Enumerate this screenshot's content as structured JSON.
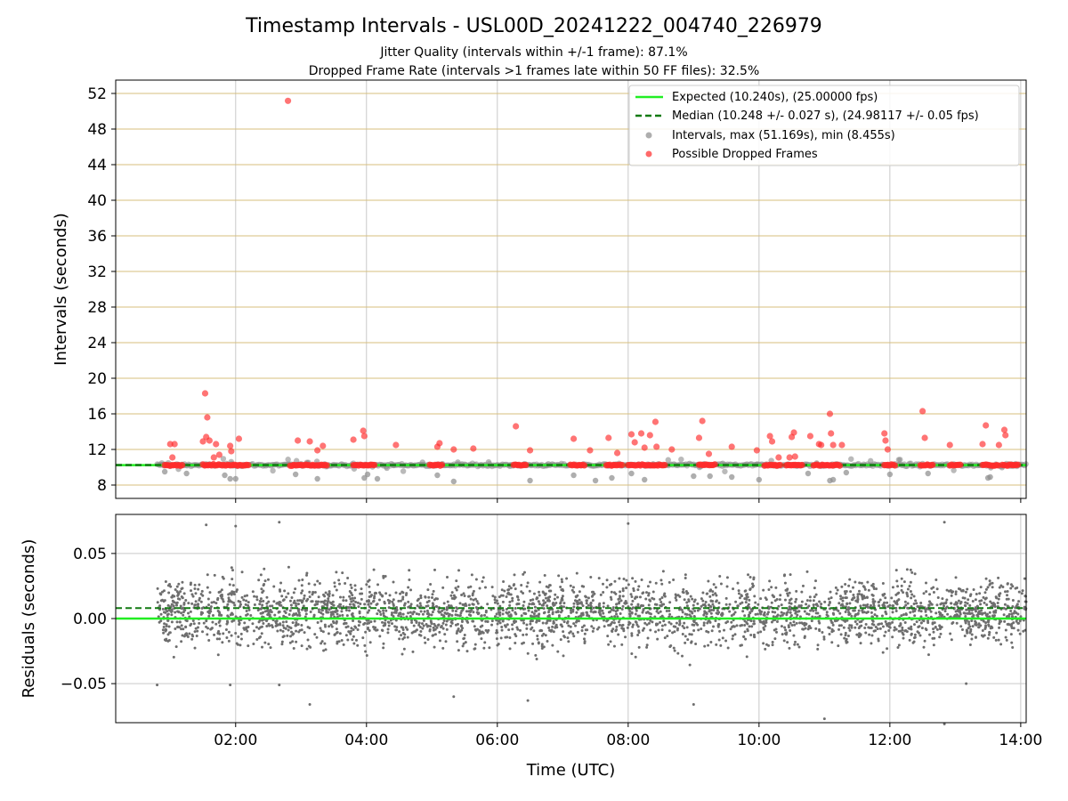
{
  "title": "Timestamp Intervals - USL00D_20241222_004740_226979",
  "subtitle1": "Jitter Quality (intervals within +/-1 frame): 87.1%",
  "subtitle2": "Dropped Frame Rate (intervals >1 frames late within 50 FF files): 32.5%",
  "colors": {
    "expected": "#22ee22",
    "median": "#127a12",
    "intervals": "#8c8c8c",
    "dropped": "#ff2a2a",
    "hgrid_top": "#d7bf7d",
    "vgrid": "#c9c9c9",
    "residual_points": "#6e6e6e"
  },
  "chart_data": [
    {
      "type": "scatter",
      "panel": "intervals",
      "xlabel": "",
      "ylabel": "Intervals (seconds)",
      "xlim": [
        "00:10",
        "14:05"
      ],
      "ylim": [
        6.5,
        53.5
      ],
      "x_ticks": [
        "02:00",
        "04:00",
        "06:00",
        "08:00",
        "10:00",
        "12:00",
        "14:00"
      ],
      "y_ticks": [
        8,
        12,
        16,
        20,
        24,
        28,
        32,
        36,
        40,
        44,
        48,
        52
      ],
      "grid": "horizontal lines (tan) and vertical lines (gray)",
      "legend_position": "top-right",
      "legend": [
        "Expected (10.240s), (25.00000 fps)",
        "Median (10.248 +/- 0.027 s), (24.98117 +/- 0.05 fps)",
        "Intervals, max (51.169s), min (8.455s)",
        "Possible Dropped Frames"
      ],
      "expected_interval": 10.24,
      "median_interval": 10.248,
      "max_interval": 51.169,
      "min_interval": 8.455,
      "dropped_frame_outliers": [
        {
          "x": "01:00",
          "y": 12.6
        },
        {
          "x": "01:04",
          "y": 12.6
        },
        {
          "x": "01:02",
          "y": 11.1
        },
        {
          "x": "01:30",
          "y": 12.9
        },
        {
          "x": "01:32",
          "y": 18.3
        },
        {
          "x": "01:34",
          "y": 15.6
        },
        {
          "x": "01:33",
          "y": 13.4
        },
        {
          "x": "01:36",
          "y": 13.0
        },
        {
          "x": "01:40",
          "y": 11.1
        },
        {
          "x": "01:42",
          "y": 12.6
        },
        {
          "x": "01:45",
          "y": 11.4
        },
        {
          "x": "01:55",
          "y": 12.4
        },
        {
          "x": "01:56",
          "y": 11.8
        },
        {
          "x": "02:03",
          "y": 13.2
        },
        {
          "x": "02:48",
          "y": 51.169
        },
        {
          "x": "02:57",
          "y": 13.0
        },
        {
          "x": "03:08",
          "y": 12.9
        },
        {
          "x": "03:15",
          "y": 11.9
        },
        {
          "x": "03:20",
          "y": 12.4
        },
        {
          "x": "03:48",
          "y": 13.1
        },
        {
          "x": "03:57",
          "y": 14.1
        },
        {
          "x": "03:58",
          "y": 13.5
        },
        {
          "x": "04:27",
          "y": 12.5
        },
        {
          "x": "05:05",
          "y": 12.3
        },
        {
          "x": "05:07",
          "y": 12.7
        },
        {
          "x": "05:20",
          "y": 12.0
        },
        {
          "x": "05:38",
          "y": 12.1
        },
        {
          "x": "06:17",
          "y": 14.6
        },
        {
          "x": "06:30",
          "y": 11.9
        },
        {
          "x": "07:10",
          "y": 13.2
        },
        {
          "x": "07:25",
          "y": 11.9
        },
        {
          "x": "07:42",
          "y": 13.3
        },
        {
          "x": "07:50",
          "y": 11.6
        },
        {
          "x": "08:03",
          "y": 13.7
        },
        {
          "x": "08:06",
          "y": 12.8
        },
        {
          "x": "08:12",
          "y": 13.8
        },
        {
          "x": "08:15",
          "y": 12.2
        },
        {
          "x": "08:20",
          "y": 13.6
        },
        {
          "x": "08:25",
          "y": 15.1
        },
        {
          "x": "08:26",
          "y": 12.3
        },
        {
          "x": "08:40",
          "y": 12.0
        },
        {
          "x": "09:05",
          "y": 13.3
        },
        {
          "x": "09:08",
          "y": 15.2
        },
        {
          "x": "09:14",
          "y": 11.5
        },
        {
          "x": "09:35",
          "y": 12.3
        },
        {
          "x": "09:58",
          "y": 11.9
        },
        {
          "x": "10:10",
          "y": 13.5
        },
        {
          "x": "10:12",
          "y": 12.9
        },
        {
          "x": "10:18",
          "y": 11.1
        },
        {
          "x": "10:28",
          "y": 11.1
        },
        {
          "x": "10:30",
          "y": 13.4
        },
        {
          "x": "10:32",
          "y": 13.9
        },
        {
          "x": "10:33",
          "y": 11.2
        },
        {
          "x": "10:47",
          "y": 13.5
        },
        {
          "x": "10:55",
          "y": 12.6
        },
        {
          "x": "10:57",
          "y": 12.5
        },
        {
          "x": "11:05",
          "y": 16.0
        },
        {
          "x": "11:06",
          "y": 13.8
        },
        {
          "x": "11:08",
          "y": 12.5
        },
        {
          "x": "11:16",
          "y": 12.5
        },
        {
          "x": "11:55",
          "y": 13.8
        },
        {
          "x": "11:56",
          "y": 13.0
        },
        {
          "x": "11:58",
          "y": 12.0
        },
        {
          "x": "12:30",
          "y": 16.3
        },
        {
          "x": "12:32",
          "y": 13.3
        },
        {
          "x": "12:55",
          "y": 12.5
        },
        {
          "x": "13:25",
          "y": 12.6
        },
        {
          "x": "13:28",
          "y": 14.7
        },
        {
          "x": "13:40",
          "y": 12.5
        },
        {
          "x": "13:45",
          "y": 14.2
        },
        {
          "x": "13:46",
          "y": 13.6
        }
      ],
      "dropped_frame_clusters": [
        {
          "x_start": "00:55",
          "x_end": "01:12"
        },
        {
          "x_start": "01:30",
          "x_end": "02:12"
        },
        {
          "x_start": "02:50",
          "x_end": "03:25"
        },
        {
          "x_start": "03:48",
          "x_end": "04:08"
        },
        {
          "x_start": "04:58",
          "x_end": "05:10"
        },
        {
          "x_start": "06:15",
          "x_end": "06:27"
        },
        {
          "x_start": "07:07",
          "x_end": "07:20"
        },
        {
          "x_start": "07:40",
          "x_end": "07:55"
        },
        {
          "x_start": "08:00",
          "x_end": "08:35"
        },
        {
          "x_start": "09:05",
          "x_end": "09:20"
        },
        {
          "x_start": "10:05",
          "x_end": "10:20"
        },
        {
          "x_start": "10:25",
          "x_end": "10:40"
        },
        {
          "x_start": "10:50",
          "x_end": "11:15"
        },
        {
          "x_start": "11:55",
          "x_end": "12:05"
        },
        {
          "x_start": "12:28",
          "x_end": "12:40"
        },
        {
          "x_start": "12:55",
          "x_end": "13:05"
        },
        {
          "x_start": "13:25",
          "x_end": "13:40"
        },
        {
          "x_start": "13:43",
          "x_end": "13:58"
        }
      ],
      "low_interval_points": [
        {
          "x": "00:55",
          "y": 9.5
        },
        {
          "x": "01:15",
          "y": 9.3
        },
        {
          "x": "01:50",
          "y": 9.1
        },
        {
          "x": "01:55",
          "y": 8.7
        },
        {
          "x": "02:00",
          "y": 8.7
        },
        {
          "x": "02:55",
          "y": 9.2
        },
        {
          "x": "03:15",
          "y": 8.7
        },
        {
          "x": "03:58",
          "y": 8.8
        },
        {
          "x": "04:01",
          "y": 9.2
        },
        {
          "x": "04:10",
          "y": 8.7
        },
        {
          "x": "05:05",
          "y": 9.1
        },
        {
          "x": "05:20",
          "y": 8.4
        },
        {
          "x": "06:30",
          "y": 8.5
        },
        {
          "x": "07:10",
          "y": 9.1
        },
        {
          "x": "07:30",
          "y": 8.5
        },
        {
          "x": "07:45",
          "y": 8.8
        },
        {
          "x": "08:03",
          "y": 9.3
        },
        {
          "x": "08:15",
          "y": 8.6
        },
        {
          "x": "09:00",
          "y": 9.0
        },
        {
          "x": "09:15",
          "y": 9.0
        },
        {
          "x": "09:35",
          "y": 8.9
        },
        {
          "x": "10:00",
          "y": 8.6
        },
        {
          "x": "10:45",
          "y": 9.3
        },
        {
          "x": "11:05",
          "y": 8.5
        },
        {
          "x": "11:08",
          "y": 8.6
        },
        {
          "x": "11:20",
          "y": 9.4
        },
        {
          "x": "12:00",
          "y": 9.2
        },
        {
          "x": "12:35",
          "y": 9.3
        },
        {
          "x": "13:30",
          "y": 8.8
        },
        {
          "x": "13:32",
          "y": 8.9
        }
      ]
    },
    {
      "type": "scatter",
      "panel": "residuals",
      "xlabel": "Time (UTC)",
      "ylabel": "Residuals (seconds)",
      "xlim": [
        "00:10",
        "14:05"
      ],
      "ylim": [
        -0.08,
        0.08
      ],
      "x_ticks": [
        "02:00",
        "04:00",
        "06:00",
        "08:00",
        "10:00",
        "12:00",
        "14:00"
      ],
      "y_ticks": [
        "−0.05",
        "0.00",
        "0.05"
      ],
      "grid": "horizontal and vertical gray lines",
      "expected_residual": 0.0,
      "median_residual": 0.008,
      "residual_spread_typical": [
        -0.035,
        0.04
      ],
      "residual_extremes": [
        {
          "x": "00:48",
          "y": -0.051
        },
        {
          "x": "01:33",
          "y": 0.072
        },
        {
          "x": "02:00",
          "y": 0.071
        },
        {
          "x": "01:55",
          "y": -0.051
        },
        {
          "x": "02:40",
          "y": 0.074
        },
        {
          "x": "02:40",
          "y": -0.051
        },
        {
          "x": "03:08",
          "y": -0.066
        },
        {
          "x": "05:20",
          "y": -0.06
        },
        {
          "x": "06:28",
          "y": -0.063
        },
        {
          "x": "08:00",
          "y": 0.073
        },
        {
          "x": "09:00",
          "y": -0.066
        },
        {
          "x": "11:00",
          "y": -0.077
        },
        {
          "x": "12:50",
          "y": 0.074
        },
        {
          "x": "12:50",
          "y": -0.081
        },
        {
          "x": "13:10",
          "y": -0.05
        }
      ]
    }
  ]
}
